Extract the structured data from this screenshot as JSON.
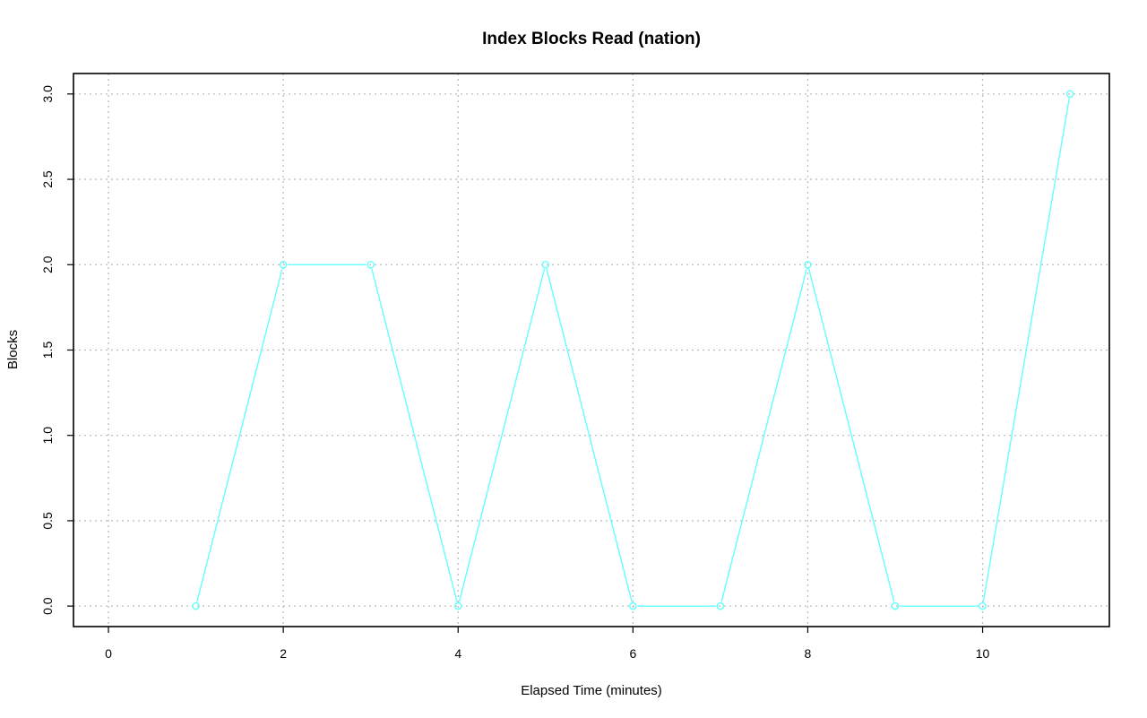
{
  "chart_data": {
    "type": "line",
    "title": "Index Blocks Read (nation)",
    "xlabel": "Elapsed Time (minutes)",
    "ylabel": "Blocks",
    "xlim": [
      -0.4,
      11.45
    ],
    "ylim": [
      -0.12,
      3.12
    ],
    "x_ticks": [
      0,
      2,
      4,
      6,
      8,
      10
    ],
    "x_tick_labels": [
      "0",
      "2",
      "4",
      "6",
      "8",
      "10"
    ],
    "y_ticks": [
      0,
      0.5,
      1,
      1.5,
      2,
      2.5,
      3
    ],
    "y_tick_labels": [
      "0.0",
      "0.5",
      "1.0",
      "1.5",
      "2.0",
      "2.5",
      "3.0"
    ],
    "grid": true,
    "series": [
      {
        "color": "#66ffff",
        "x": [
          1,
          2,
          3,
          4,
          5,
          6,
          7,
          8,
          9,
          10,
          11
        ],
        "y": [
          0,
          2,
          2,
          0,
          2,
          0,
          0,
          2,
          0,
          0,
          3
        ]
      }
    ]
  }
}
